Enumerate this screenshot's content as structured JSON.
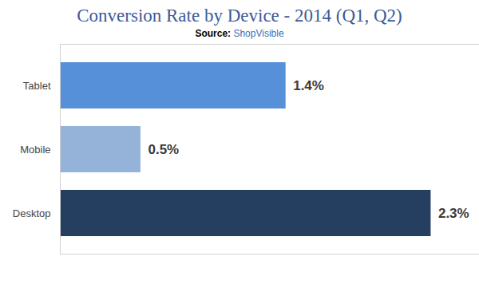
{
  "chart_data": {
    "type": "bar",
    "orientation": "horizontal",
    "title": "Conversion Rate by Device - 2014 (Q1, Q2)",
    "subtitle": "Source: ShopVisible",
    "categories": [
      "Tablet",
      "Mobile",
      "Desktop"
    ],
    "values": [
      1.4,
      0.5,
      2.3
    ],
    "value_labels": [
      "1.4%",
      "0.5%",
      "2.3%"
    ],
    "colors": [
      "#5590d8",
      "#95b3d9",
      "#243f60"
    ],
    "xlim": [
      0,
      2.6
    ],
    "data_labels": true,
    "grid": false,
    "tick_labels": "y"
  }
}
